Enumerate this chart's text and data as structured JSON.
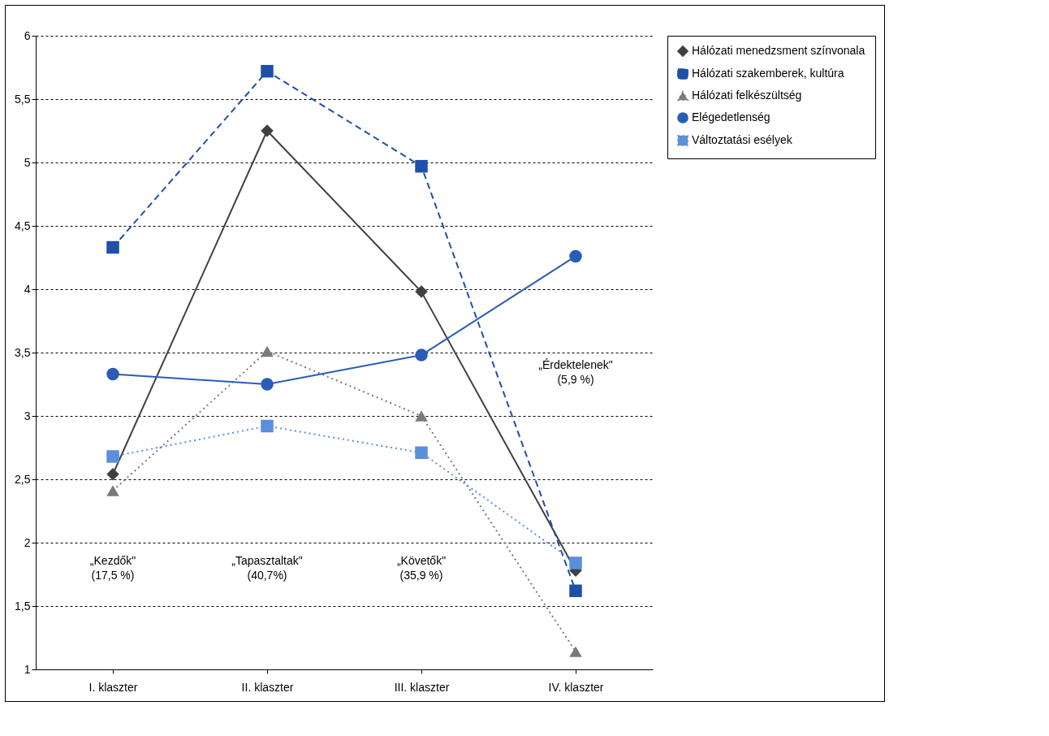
{
  "chart_data": {
    "type": "line",
    "categories": [
      "I. klaszter",
      "II. klaszter",
      "III. klaszter",
      "IV. klaszter"
    ],
    "series": [
      {
        "name": "Hálózati menedzsment színvonala",
        "color": "#404040",
        "marker": "diamond",
        "line_style": "solid",
        "values": [
          2.54,
          5.25,
          3.98,
          1.78
        ]
      },
      {
        "name": "Hálózati szakemberek, kultúra",
        "color": "#1f4fa8",
        "marker": "square",
        "line_style": "dashed",
        "values": [
          4.33,
          5.72,
          4.97,
          1.62
        ]
      },
      {
        "name": "Hálózati felkészültség",
        "color": "#7a7a7a",
        "marker": "triangle",
        "line_style": "dotted",
        "values": [
          2.41,
          3.51,
          3.0,
          1.14
        ]
      },
      {
        "name": "Elégedetlenség",
        "color": "#2a5cb8",
        "marker": "circle",
        "line_style": "solid",
        "values": [
          3.33,
          3.25,
          3.48,
          4.26
        ]
      },
      {
        "name": "Változtatási esélyek",
        "color": "#5b8fd9",
        "marker": "square",
        "line_style": "dotted",
        "values": [
          2.68,
          2.92,
          2.71,
          1.84
        ]
      }
    ],
    "ylim": [
      1,
      6
    ],
    "yticks": [
      1,
      {
        "value": 1.5,
        "label": "1,5"
      },
      2,
      {
        "value": 2.5,
        "label": "2,5"
      },
      3,
      {
        "value": 3.5,
        "label": "3,5"
      },
      4,
      {
        "value": 4.5,
        "label": "4,5"
      },
      5,
      {
        "value": 5.5,
        "label": "5,5"
      },
      6
    ],
    "grid": "y",
    "legend": "right",
    "annotations": [
      "„Kezdők\"\n(17,5 %)",
      "„Tapasztaltak\"\n(40,7%)",
      "„Követők\"\n(35,9 %)",
      "„Érdektelenek\"\n(5,9 %)"
    ]
  }
}
